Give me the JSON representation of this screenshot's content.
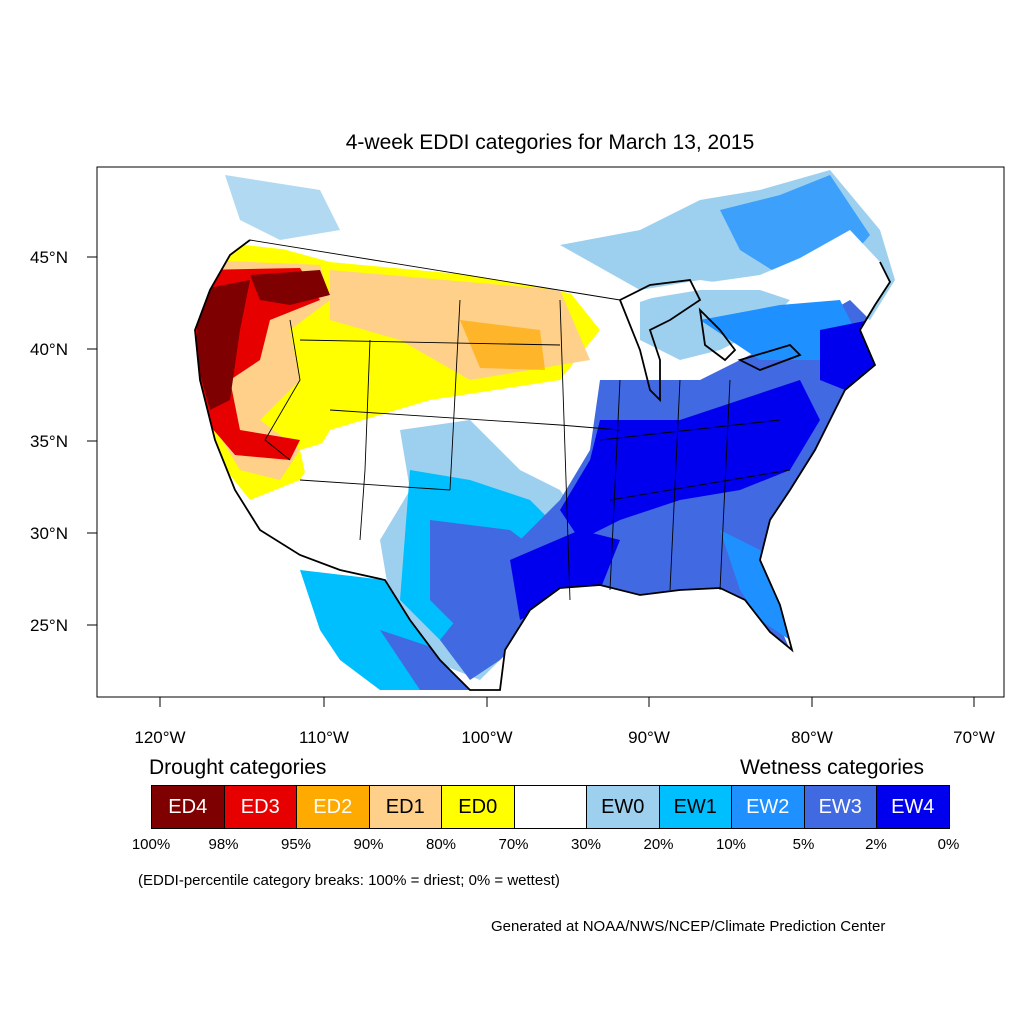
{
  "title": "4-week EDDI categories for March 13, 2015",
  "lat_ticks": [
    "45°N",
    "40°N",
    "35°N",
    "30°N",
    "25°N"
  ],
  "lon_ticks": [
    "120°W",
    "110°W",
    "100°W",
    "90°W",
    "80°W",
    "70°W"
  ],
  "legend": {
    "drought_heading": "Drought categories",
    "wetness_heading": "Wetness categories",
    "categories": [
      {
        "label": "ED4",
        "color": "#7f0000",
        "text_color": "#ffffff"
      },
      {
        "label": "ED3",
        "color": "#e60000",
        "text_color": "#ffffff"
      },
      {
        "label": "ED2",
        "color": "#ffaa00",
        "text_color": "#ffffff"
      },
      {
        "label": "ED1",
        "color": "#fed08a",
        "text_color": "#000000"
      },
      {
        "label": "ED0",
        "color": "#ffff00",
        "text_color": "#000000"
      },
      {
        "label": "",
        "color": "#ffffff",
        "text_color": "#000000"
      },
      {
        "label": "EW0",
        "color": "#9dd0ef",
        "text_color": "#000000"
      },
      {
        "label": "EW1",
        "color": "#00bfff",
        "text_color": "#000000"
      },
      {
        "label": "EW2",
        "color": "#1e90ff",
        "text_color": "#ffffff"
      },
      {
        "label": "EW3",
        "color": "#4169e1",
        "text_color": "#ffffff"
      },
      {
        "label": "EW4",
        "color": "#0000ee",
        "text_color": "#ffffff"
      }
    ],
    "breaks": [
      "100%",
      "98%",
      "95%",
      "90%",
      "80%",
      "70%",
      "30%",
      "20%",
      "10%",
      "5%",
      "2%",
      "0%"
    ]
  },
  "note": "(EDDI-percentile category breaks: 100% = driest; 0% = wettest)",
  "credit": "Generated at NOAA/NWS/NCEP/Climate Prediction Center"
}
